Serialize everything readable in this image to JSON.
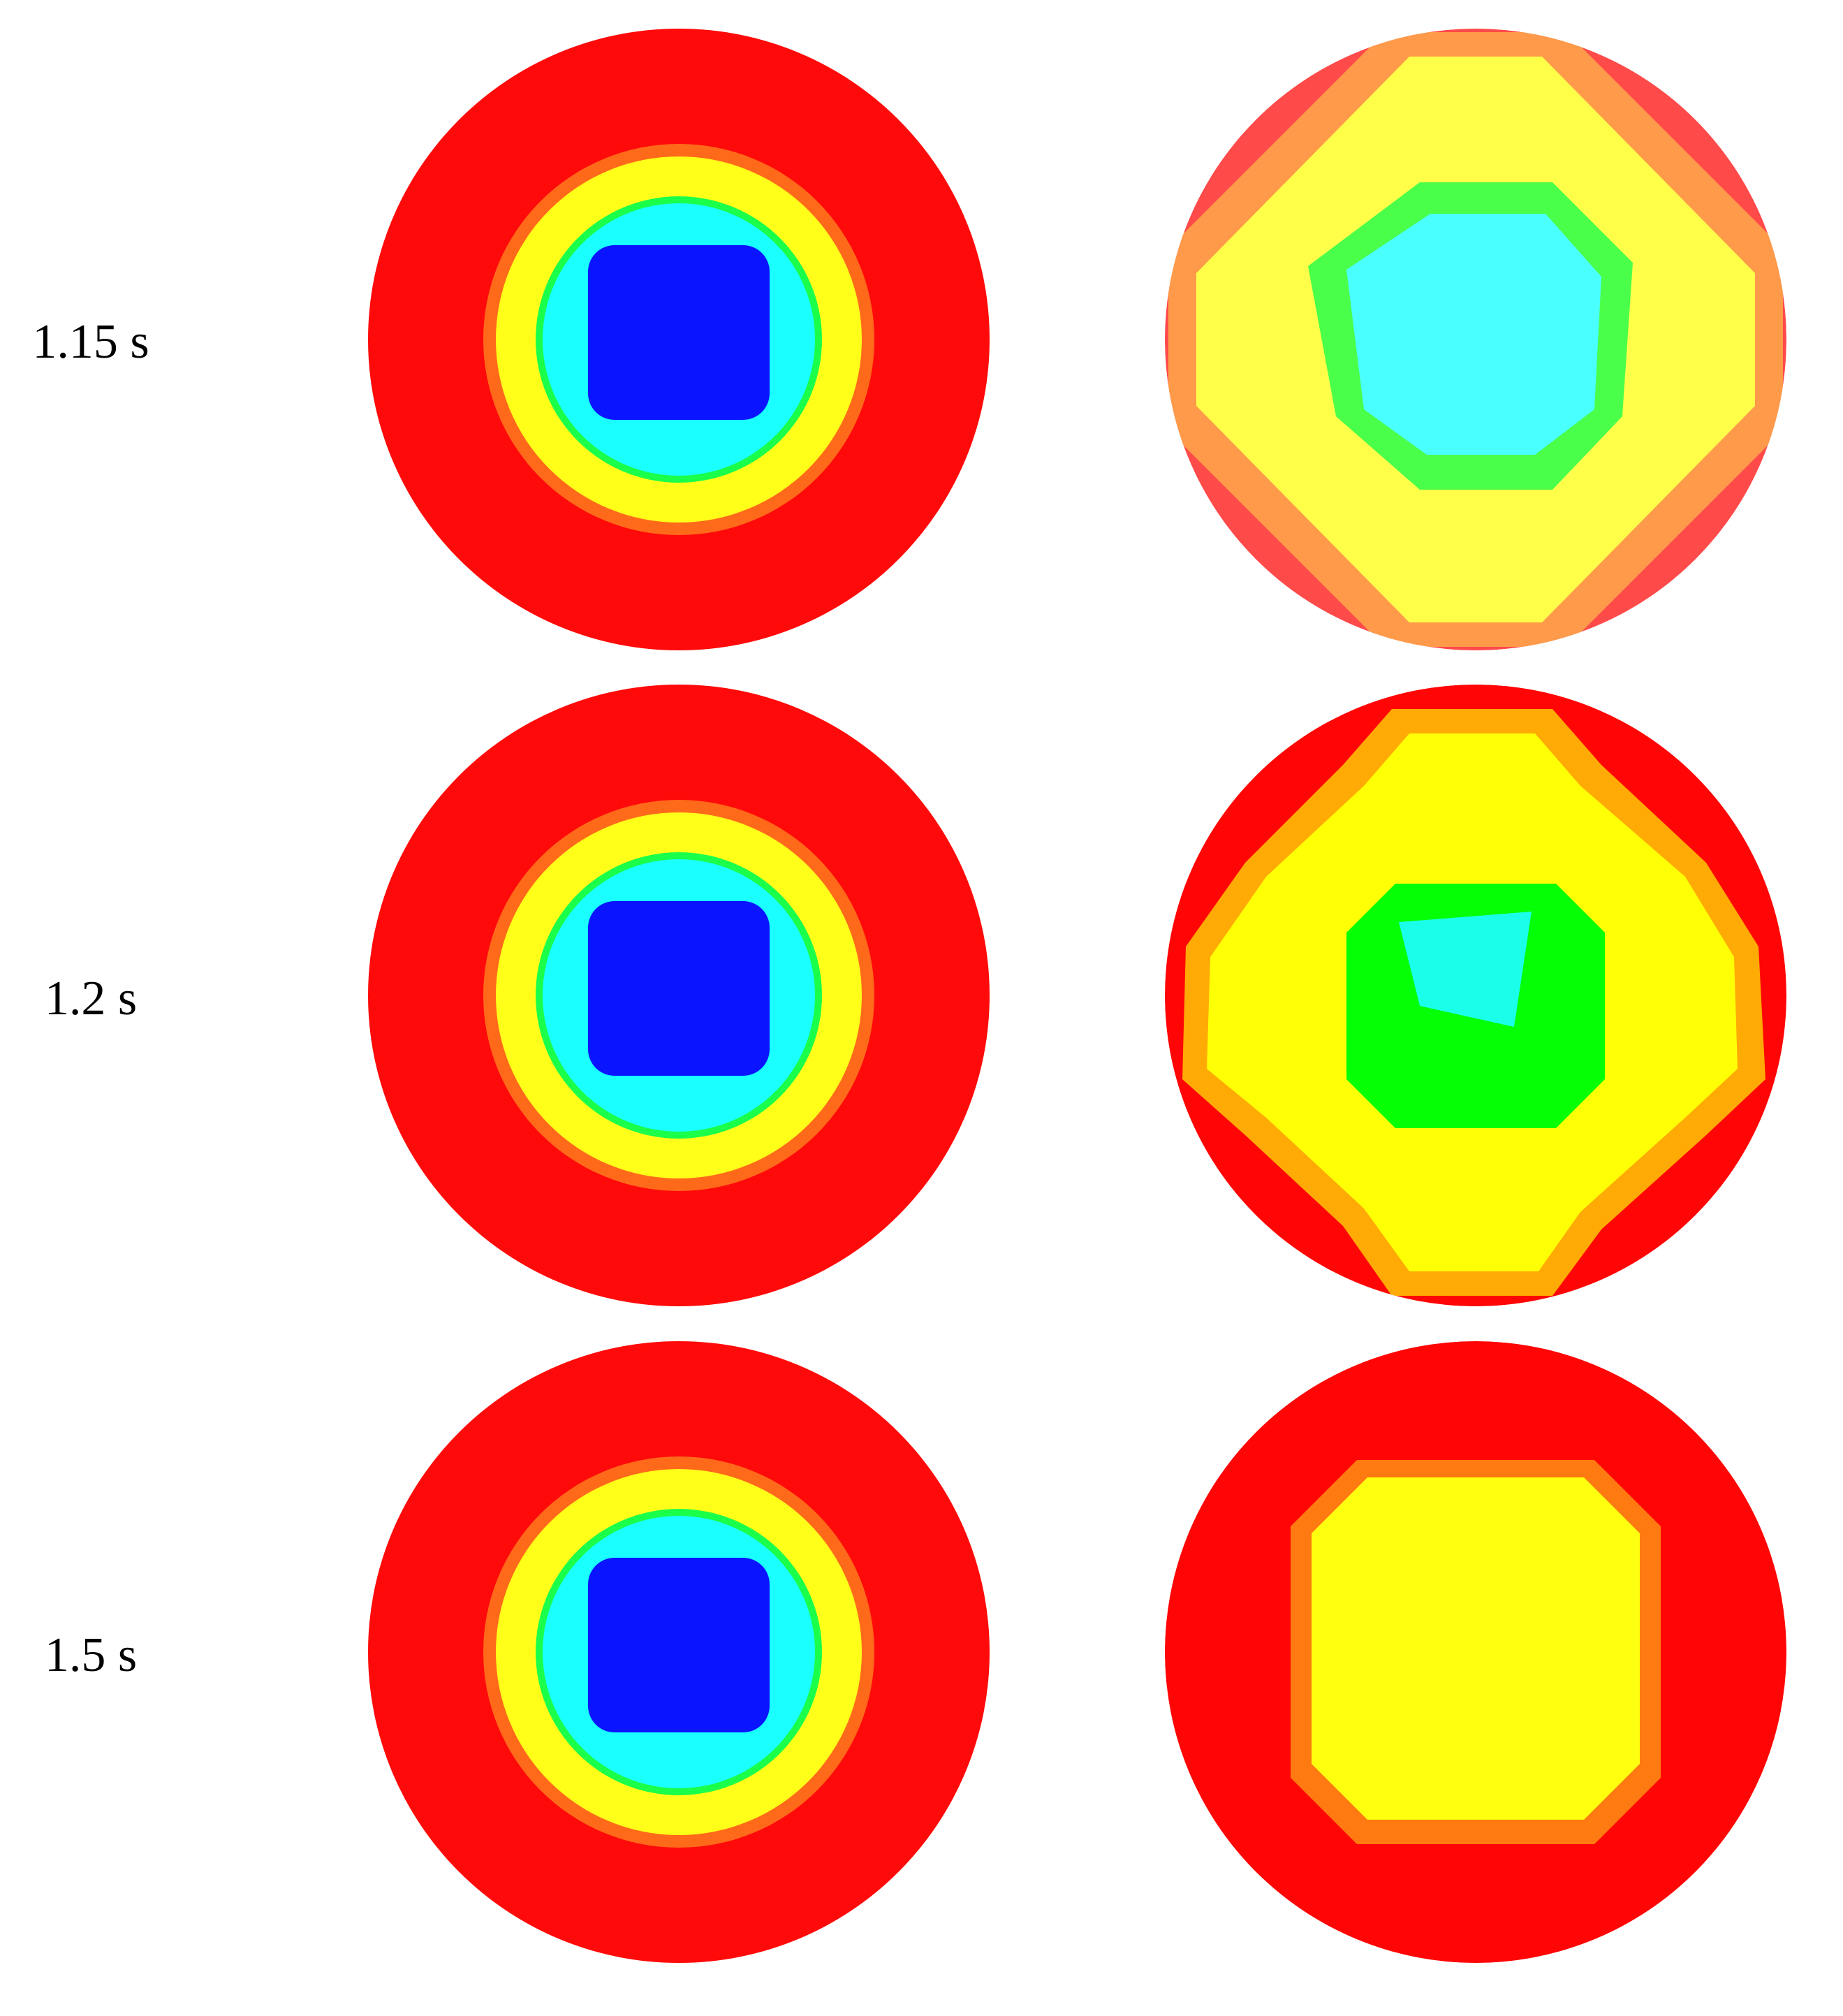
{
  "rows": [
    {
      "time_label": "1.15 s",
      "left": {
        "layers": [
          {
            "color": "#ff0a0a",
            "shape": "circle"
          },
          {
            "color": "#ff6a1a",
            "shape": "ring-outer"
          },
          {
            "color": "#ffff1a",
            "shape": "ring"
          },
          {
            "color": "#1aff4a",
            "shape": "ring-thin"
          },
          {
            "color": "#1affff",
            "shape": "ring"
          },
          {
            "color": "#0a14ff",
            "shape": "square-core"
          }
        ]
      },
      "right": {
        "layers": [
          {
            "color": "#ff4a4a",
            "shape": "circle"
          },
          {
            "color": "#ff9a4a",
            "shape": "diamond-outer"
          },
          {
            "color": "#ffff4a",
            "shape": "diamond"
          },
          {
            "color": "#4aff4a",
            "shape": "octagon"
          },
          {
            "color": "#4affff",
            "shape": "pentagon-core"
          }
        ]
      }
    },
    {
      "time_label": "1.2 s",
      "left": {
        "layers": [
          {
            "color": "#ff0a0a",
            "shape": "circle"
          },
          {
            "color": "#ff6a1a",
            "shape": "ring-outer"
          },
          {
            "color": "#ffff1a",
            "shape": "ring"
          },
          {
            "color": "#1aff4a",
            "shape": "ring-thin"
          },
          {
            "color": "#1affff",
            "shape": "ring"
          },
          {
            "color": "#0a14ff",
            "shape": "square-core"
          }
        ]
      },
      "right": {
        "layers": [
          {
            "color": "#ff0505",
            "shape": "circle"
          },
          {
            "color": "#ffaa05",
            "shape": "cross-outer"
          },
          {
            "color": "#ffff05",
            "shape": "cross"
          },
          {
            "color": "#05ff05",
            "shape": "octagon"
          },
          {
            "color": "#1affea",
            "shape": "quad-core"
          }
        ]
      }
    },
    {
      "time_label": "1.5 s",
      "left": {
        "layers": [
          {
            "color": "#ff0a0a",
            "shape": "circle"
          },
          {
            "color": "#ff6a1a",
            "shape": "ring-outer"
          },
          {
            "color": "#ffff1a",
            "shape": "ring"
          },
          {
            "color": "#1aff4a",
            "shape": "ring-thin"
          },
          {
            "color": "#1affff",
            "shape": "ring"
          },
          {
            "color": "#0a14ff",
            "shape": "square-core"
          }
        ]
      },
      "right": {
        "layers": [
          {
            "color": "#ff0505",
            "shape": "circle"
          },
          {
            "color": "#ff7a10",
            "shape": "octagon-outer"
          },
          {
            "color": "#ffff10",
            "shape": "octagon-core"
          }
        ]
      }
    }
  ]
}
